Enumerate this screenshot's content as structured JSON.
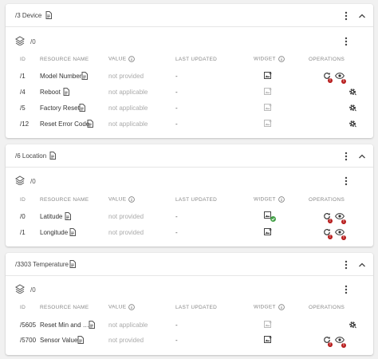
{
  "headers": {
    "id": "ID",
    "resource_name": "RESOURCE NAME",
    "value": "VALUE",
    "last_updated": "LAST UPDATED",
    "widget": "WIDGET",
    "operations": "OPERATIONS"
  },
  "badge_text": "!",
  "colors": {
    "error": "#b71c1c",
    "success": "#43a047",
    "muted": "#aaaaaa"
  },
  "objects": [
    {
      "title": "/3 Device",
      "instance": "/0",
      "rows": [
        {
          "id": "/1",
          "name": "Model Number",
          "value": "not provided",
          "updated": "-",
          "widget": "active",
          "ops": "read-observe"
        },
        {
          "id": "/4",
          "name": "Reboot",
          "value": "not applicable",
          "updated": "-",
          "widget": "disabled",
          "ops": "execute"
        },
        {
          "id": "/5",
          "name": "Factory Reset",
          "value": "not applicable",
          "updated": "-",
          "widget": "disabled",
          "ops": "execute"
        },
        {
          "id": "/12",
          "name": "Reset Error Code",
          "value": "not applicable",
          "updated": "-",
          "widget": "disabled",
          "ops": "execute"
        }
      ]
    },
    {
      "title": "/6 Location",
      "instance": "/0",
      "rows": [
        {
          "id": "/0",
          "name": "Latitude",
          "value": "not provided",
          "updated": "-",
          "widget": "active-checked",
          "ops": "read-observe"
        },
        {
          "id": "/1",
          "name": "Longitude",
          "value": "not provided",
          "updated": "-",
          "widget": "active",
          "ops": "read-observe"
        }
      ]
    },
    {
      "title": "/3303 Temperature",
      "instance": "/0",
      "rows": [
        {
          "id": "/5605",
          "name": "Reset Min and …",
          "value": "not applicable",
          "updated": "-",
          "widget": "disabled",
          "ops": "execute"
        },
        {
          "id": "/5700",
          "name": "Sensor Value",
          "value": "not provided",
          "updated": "-",
          "widget": "active",
          "ops": "read-observe"
        }
      ]
    }
  ]
}
